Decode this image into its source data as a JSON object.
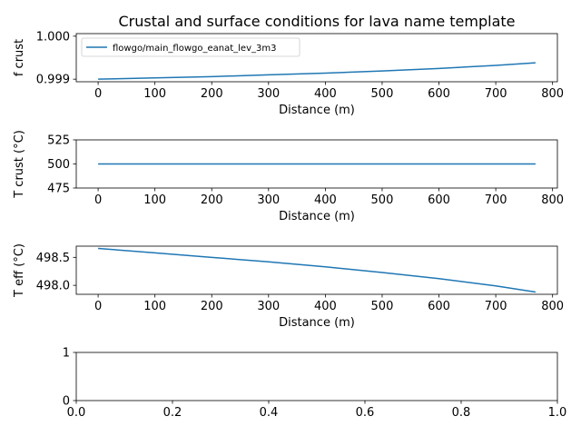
{
  "chart_data": [
    {
      "type": "line",
      "title": "Crustal and surface conditions for lava name template",
      "xlabel": "Distance (m)",
      "ylabel": "f crust",
      "xlim": [
        -38.5,
        808.5
      ],
      "ylim": [
        0.99894,
        1.00006
      ],
      "xticks": [
        0,
        100,
        200,
        300,
        400,
        500,
        600,
        700,
        800
      ],
      "yticks": [
        0.999,
        1.0
      ],
      "ytick_labels": [
        "0.999",
        "1.000"
      ],
      "legend": "top-left",
      "series": [
        {
          "name": "flowgo/main_flowgo_eanat_lev_3m3",
          "color": "#1f77b4",
          "x": [
            0,
            100,
            200,
            300,
            400,
            500,
            600,
            700,
            770
          ],
          "y": [
            0.999,
            0.99903,
            0.99906,
            0.9991,
            0.99914,
            0.99919,
            0.99925,
            0.99932,
            0.99938
          ]
        }
      ]
    },
    {
      "type": "line",
      "xlabel": "Distance (m)",
      "ylabel": "T crust (°C)",
      "xlim": [
        -38.5,
        808.5
      ],
      "ylim": [
        475,
        525
      ],
      "xticks": [
        0,
        100,
        200,
        300,
        400,
        500,
        600,
        700,
        800
      ],
      "yticks": [
        475,
        500,
        525
      ],
      "ytick_labels": [
        "475",
        "500",
        "525"
      ],
      "series": [
        {
          "color": "#1f77b4",
          "x": [
            0,
            770
          ],
          "y": [
            500,
            500
          ]
        }
      ]
    },
    {
      "type": "line",
      "xlabel": "Distance (m)",
      "ylabel": "T eff (°C)",
      "xlim": [
        -38.5,
        808.5
      ],
      "ylim": [
        497.84,
        498.7
      ],
      "xticks": [
        0,
        100,
        200,
        300,
        400,
        500,
        600,
        700,
        800
      ],
      "yticks": [
        498.0,
        498.5
      ],
      "ytick_labels": [
        "498.0",
        "498.5"
      ],
      "series": [
        {
          "color": "#1f77b4",
          "x": [
            0,
            100,
            200,
            300,
            400,
            500,
            600,
            700,
            770
          ],
          "y": [
            498.66,
            498.58,
            498.5,
            498.42,
            498.33,
            498.23,
            498.12,
            497.99,
            497.88
          ]
        }
      ]
    },
    {
      "type": "line",
      "xlim": [
        0,
        1
      ],
      "ylim": [
        0,
        1
      ],
      "xticks": [
        0.0,
        0.2,
        0.4,
        0.6,
        0.8,
        1.0
      ],
      "xtick_labels": [
        "0.0",
        "0.2",
        "0.4",
        "0.6",
        "0.8",
        "1.0"
      ],
      "yticks": [
        0,
        1
      ],
      "ytick_labels": [
        "0",
        "1"
      ],
      "series": []
    }
  ]
}
